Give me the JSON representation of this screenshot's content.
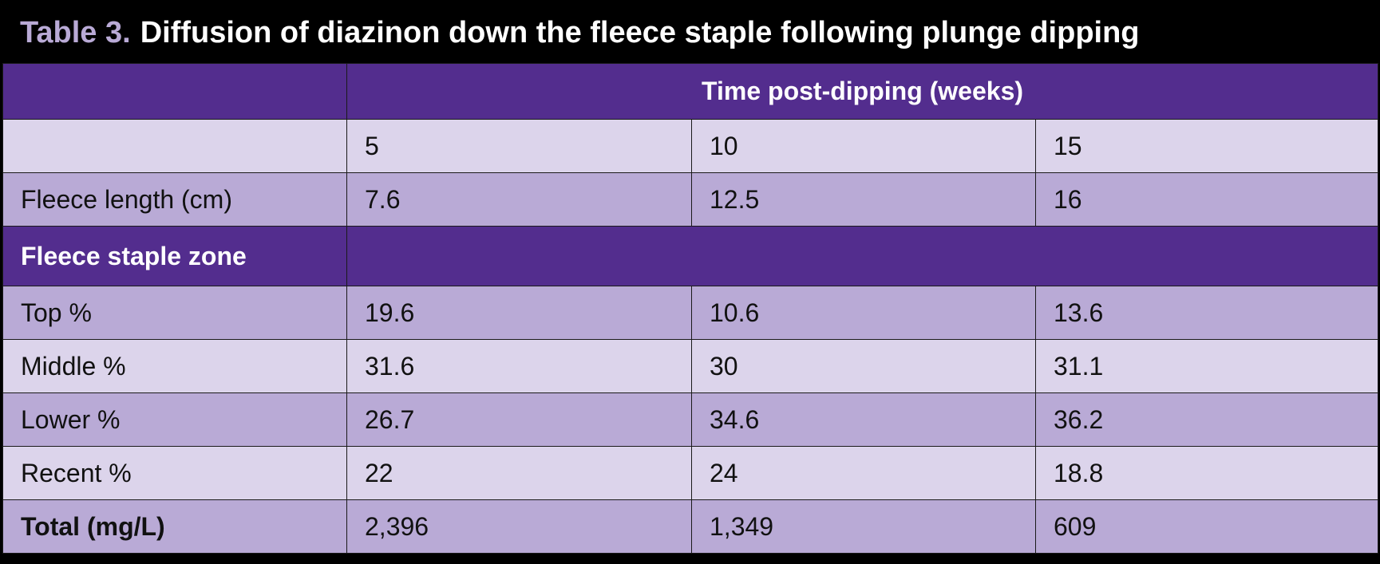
{
  "title": {
    "label": "Table 3.",
    "text": "Diffusion of diazinon down the fleece staple following plunge dipping"
  },
  "table": {
    "header": {
      "first": "",
      "span": "Time post-dipping (weeks)"
    },
    "weeks_row": {
      "label": "",
      "values": [
        "5",
        "10",
        "15"
      ]
    },
    "fleece_length": {
      "label": "Fleece length (cm)",
      "values": [
        "7.6",
        "12.5",
        "16"
      ]
    },
    "section": {
      "label": "Fleece staple zone",
      "rest": ""
    },
    "rows": [
      {
        "label": "Top %",
        "values": [
          "19.6",
          "10.6",
          "13.6"
        ]
      },
      {
        "label": "Middle %",
        "values": [
          "31.6",
          "30",
          "31.1"
        ]
      },
      {
        "label": "Lower %",
        "values": [
          "26.7",
          "34.6",
          "36.2"
        ]
      },
      {
        "label": "Recent %",
        "values": [
          "22",
          "24",
          "18.8"
        ]
      },
      {
        "label": "Total (mg/L)",
        "values": [
          "2,396",
          "1,349",
          "609"
        ]
      }
    ]
  },
  "colors": {
    "header_purple": "#532d8e",
    "row_light": "#dcd4eb",
    "row_mid": "#b9aad6",
    "title_bg": "#000000"
  }
}
